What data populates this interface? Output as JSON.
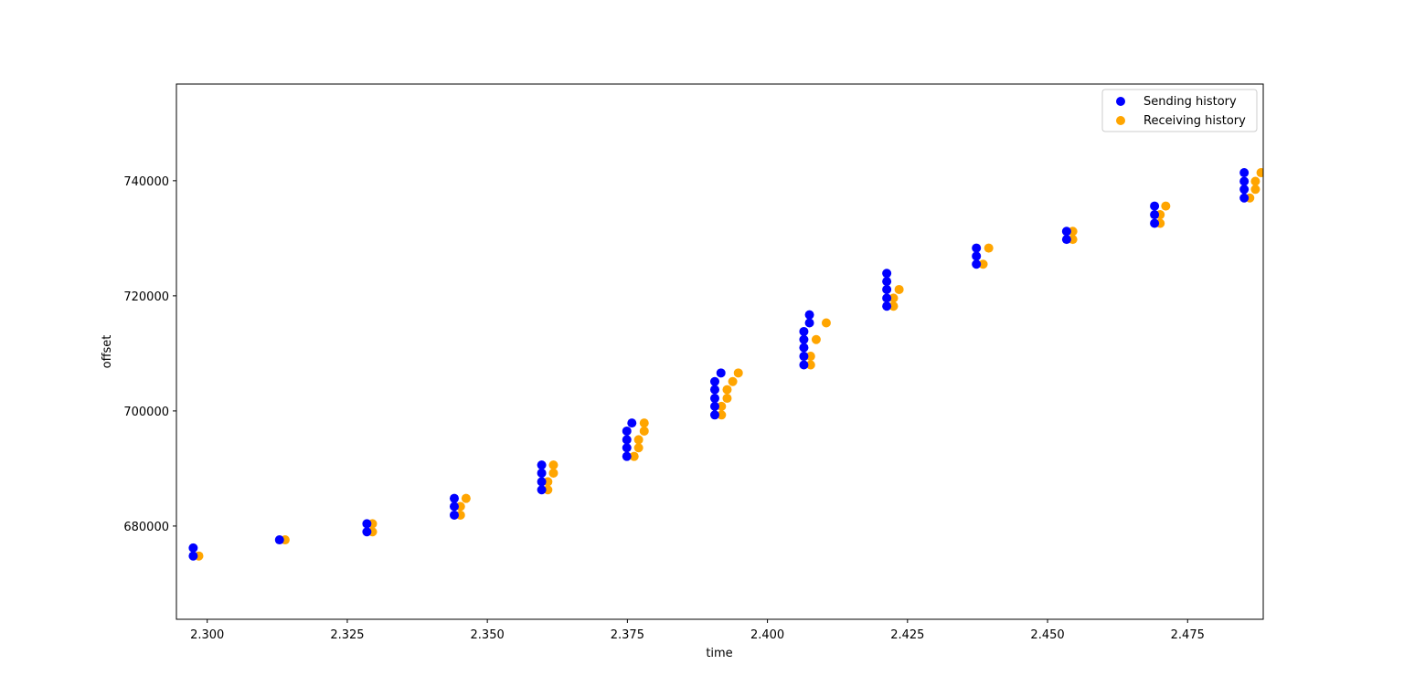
{
  "chart_data": {
    "type": "scatter",
    "title": "",
    "xlabel": "time",
    "ylabel": "offset",
    "xlim": [
      2.2945,
      2.4885
    ],
    "ylim": [
      663800,
      756800
    ],
    "x_ticks": [
      2.3,
      2.325,
      2.35,
      2.375,
      2.4,
      2.425,
      2.45,
      2.475
    ],
    "x_tick_labels": [
      "2.300",
      "2.325",
      "2.350",
      "2.375",
      "2.400",
      "2.425",
      "2.450",
      "2.475"
    ],
    "y_ticks": [
      680000,
      700000,
      720000,
      740000
    ],
    "y_tick_labels": [
      "680000",
      "700000",
      "720000",
      "740000"
    ],
    "grid": false,
    "legend_position": "top-right",
    "series": [
      {
        "name": "Sending history",
        "color": "#0000ff",
        "points": [
          [
            2.2975,
            674800
          ],
          [
            2.2975,
            676200
          ],
          [
            2.3129,
            677600
          ],
          [
            2.3285,
            679000
          ],
          [
            2.3285,
            680400
          ],
          [
            2.3441,
            681900
          ],
          [
            2.3441,
            683400
          ],
          [
            2.3441,
            684800
          ],
          [
            2.3597,
            686300
          ],
          [
            2.3597,
            687700
          ],
          [
            2.3597,
            689200
          ],
          [
            2.3597,
            690600
          ],
          [
            2.3749,
            692100
          ],
          [
            2.3749,
            693600
          ],
          [
            2.3749,
            695000
          ],
          [
            2.3749,
            696500
          ],
          [
            2.3758,
            697900
          ],
          [
            2.3906,
            699300
          ],
          [
            2.3906,
            700800
          ],
          [
            2.3906,
            702200
          ],
          [
            2.3906,
            703700
          ],
          [
            2.3906,
            705100
          ],
          [
            2.3917,
            706600
          ],
          [
            2.4065,
            708000
          ],
          [
            2.4065,
            709500
          ],
          [
            2.4065,
            711000
          ],
          [
            2.4065,
            712400
          ],
          [
            2.4065,
            713800
          ],
          [
            2.4075,
            715300
          ],
          [
            2.4075,
            716700
          ],
          [
            2.4213,
            718200
          ],
          [
            2.4213,
            719600
          ],
          [
            2.4213,
            721100
          ],
          [
            2.4213,
            722500
          ],
          [
            2.4213,
            723900
          ],
          [
            2.4373,
            725500
          ],
          [
            2.4373,
            726900
          ],
          [
            2.4373,
            728300
          ],
          [
            2.4534,
            729800
          ],
          [
            2.4534,
            731200
          ],
          [
            2.4691,
            732600
          ],
          [
            2.4691,
            734100
          ],
          [
            2.4691,
            735600
          ],
          [
            2.4851,
            737000
          ],
          [
            2.4851,
            738500
          ],
          [
            2.4851,
            739900
          ],
          [
            2.4851,
            741400
          ]
        ]
      },
      {
        "name": "Receiving history",
        "color": "#ffa500",
        "points": [
          [
            2.2985,
            674800
          ],
          [
            2.3139,
            677600
          ],
          [
            2.3295,
            679000
          ],
          [
            2.3295,
            680400
          ],
          [
            2.3452,
            681900
          ],
          [
            2.3452,
            683400
          ],
          [
            2.3462,
            684800
          ],
          [
            2.3608,
            686300
          ],
          [
            2.3608,
            687700
          ],
          [
            2.3618,
            689200
          ],
          [
            2.3618,
            690600
          ],
          [
            2.3762,
            692100
          ],
          [
            2.377,
            693600
          ],
          [
            2.377,
            695000
          ],
          [
            2.378,
            696500
          ],
          [
            2.378,
            697900
          ],
          [
            2.3918,
            699300
          ],
          [
            2.3918,
            700800
          ],
          [
            2.3928,
            702200
          ],
          [
            2.3928,
            703700
          ],
          [
            2.3938,
            705100
          ],
          [
            2.3948,
            706600
          ],
          [
            2.4077,
            708000
          ],
          [
            2.4077,
            709500
          ],
          [
            2.4087,
            712400
          ],
          [
            2.4105,
            715300
          ],
          [
            2.4225,
            718200
          ],
          [
            2.4225,
            719600
          ],
          [
            2.4235,
            721100
          ],
          [
            2.4385,
            725500
          ],
          [
            2.4395,
            728300
          ],
          [
            2.4545,
            729800
          ],
          [
            2.4545,
            731200
          ],
          [
            2.4701,
            732600
          ],
          [
            2.4701,
            734100
          ],
          [
            2.4711,
            735600
          ],
          [
            2.4861,
            737000
          ],
          [
            2.4871,
            738500
          ],
          [
            2.4871,
            739900
          ],
          [
            2.4881,
            741400
          ]
        ]
      }
    ]
  }
}
